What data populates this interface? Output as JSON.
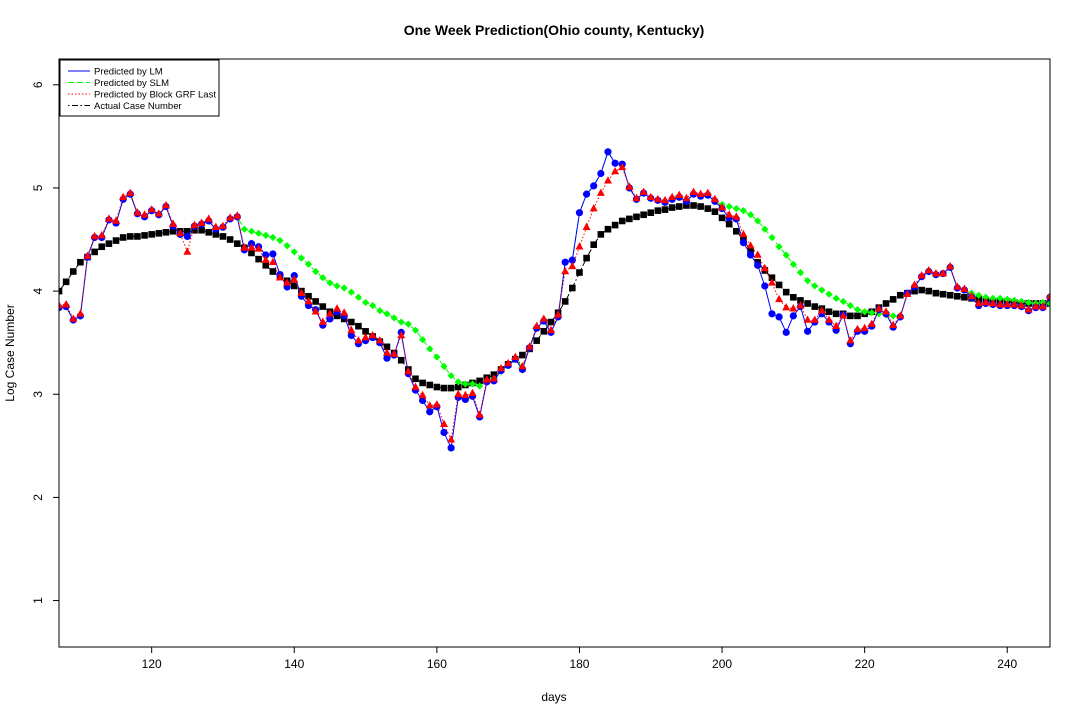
{
  "chart_data": {
    "type": "line",
    "title": "One Week Prediction(Ohio county, Kentucky)",
    "xlabel": "days",
    "ylabel": "Log Case Number",
    "xlim": [
      107,
      246
    ],
    "ylim": [
      0.55,
      6.25
    ],
    "xticks": [
      120,
      140,
      160,
      180,
      200,
      220,
      240
    ],
    "yticks": [
      1,
      2,
      3,
      4,
      5,
      6
    ],
    "grid": false,
    "legend_position": "top-left",
    "legend": [
      {
        "label": "Predicted by LM",
        "color": "#0000ff",
        "dash": "solid"
      },
      {
        "label": "Predicted by SLM",
        "color": "#00ff00",
        "dash": "dashed"
      },
      {
        "label": "Predicted by Block GRF Last",
        "color": "#ff0000",
        "dash": "dotted"
      },
      {
        "label": "Actual Case Number",
        "color": "#000000",
        "dash": "dotdash"
      }
    ],
    "series": [
      {
        "name": "Actual Case Number",
        "color": "#000000",
        "marker": "square",
        "x": [
          107,
          108,
          109,
          110,
          111,
          112,
          113,
          114,
          115,
          116,
          117,
          118,
          119,
          120,
          121,
          122,
          123,
          124,
          125,
          126,
          127,
          128,
          129,
          130,
          131,
          132,
          133,
          134,
          135,
          136,
          137,
          138,
          139,
          140,
          141,
          142,
          143,
          144,
          145,
          146,
          147,
          148,
          149,
          150,
          151,
          152,
          153,
          154,
          155,
          156,
          157,
          158,
          159,
          160,
          161,
          162,
          163,
          164,
          165,
          166,
          167,
          168,
          169,
          170,
          171,
          172,
          173,
          174,
          175,
          176,
          177,
          178,
          179,
          180,
          181,
          182,
          183,
          184,
          185,
          186,
          187,
          188,
          189,
          190,
          191,
          192,
          193,
          194,
          195,
          196,
          197,
          198,
          199,
          200,
          201,
          202,
          203,
          204,
          205,
          206,
          207,
          208,
          209,
          210,
          211,
          212,
          213,
          214,
          215,
          216,
          217,
          218,
          219,
          220,
          221,
          222,
          223,
          224,
          225,
          226,
          227,
          228,
          229,
          230,
          231,
          232,
          233,
          234,
          235,
          236,
          237,
          238,
          239,
          240,
          241,
          242,
          243,
          244,
          245,
          246
        ],
        "values": [
          4.0,
          4.09,
          4.19,
          4.28,
          4.33,
          4.38,
          4.43,
          4.46,
          4.49,
          4.52,
          4.53,
          4.53,
          4.54,
          4.55,
          4.56,
          4.57,
          4.58,
          4.58,
          4.58,
          4.59,
          4.59,
          4.57,
          4.55,
          4.53,
          4.5,
          4.46,
          4.42,
          4.37,
          4.31,
          4.25,
          4.19,
          4.14,
          4.1,
          4.05,
          4.0,
          3.95,
          3.9,
          3.85,
          3.8,
          3.76,
          3.73,
          3.7,
          3.66,
          3.61,
          3.56,
          3.51,
          3.46,
          3.4,
          3.33,
          3.24,
          3.15,
          3.11,
          3.09,
          3.07,
          3.06,
          3.06,
          3.07,
          3.09,
          3.11,
          3.13,
          3.16,
          3.19,
          3.24,
          3.29,
          3.34,
          3.38,
          3.44,
          3.52,
          3.61,
          3.7,
          3.79,
          3.9,
          4.03,
          4.18,
          4.32,
          4.45,
          4.55,
          4.6,
          4.64,
          4.68,
          4.7,
          4.72,
          4.74,
          4.76,
          4.78,
          4.79,
          4.81,
          4.82,
          4.83,
          4.83,
          4.82,
          4.8,
          4.77,
          4.71,
          4.65,
          4.58,
          4.5,
          4.39,
          4.28,
          4.2,
          4.13,
          4.06,
          3.99,
          3.94,
          3.91,
          3.88,
          3.85,
          3.83,
          3.8,
          3.78,
          3.78,
          3.76,
          3.76,
          3.78,
          3.8,
          3.84,
          3.88,
          3.92,
          3.96,
          3.98,
          4.0,
          4.01,
          4.0,
          3.98,
          3.97,
          3.96,
          3.95,
          3.94,
          3.93,
          3.92,
          3.91,
          3.9,
          3.9,
          3.9,
          3.89,
          3.88,
          3.88,
          3.88,
          3.88,
          3.88
        ]
      },
      {
        "name": "Predicted by SLM",
        "color": "#00ff00",
        "marker": "diamond",
        "x": [
          107,
          108,
          109,
          110,
          111,
          112,
          113,
          114,
          115,
          116,
          117,
          118,
          119,
          120,
          121,
          122,
          123,
          124,
          125,
          126,
          127,
          128,
          129,
          130,
          131,
          132,
          133,
          134,
          135,
          136,
          137,
          138,
          139,
          140,
          141,
          142,
          143,
          144,
          145,
          146,
          147,
          148,
          149,
          150,
          151,
          152,
          153,
          154,
          155,
          156,
          157,
          158,
          159,
          160,
          161,
          162,
          163,
          164,
          165,
          166,
          167,
          168,
          169,
          170,
          171,
          172,
          173,
          174,
          175,
          176,
          177,
          178,
          179,
          180,
          181,
          182,
          183,
          184,
          185,
          186,
          187,
          188,
          189,
          190,
          191,
          192,
          193,
          194,
          195,
          196,
          197,
          198,
          199,
          200,
          201,
          202,
          203,
          204,
          205,
          206,
          207,
          208,
          209,
          210,
          211,
          212,
          213,
          214,
          215,
          216,
          217,
          218,
          219,
          220,
          221,
          222,
          223,
          224,
          225,
          226,
          227,
          228,
          229,
          230,
          231,
          232,
          233,
          234,
          235,
          236,
          237,
          238,
          239,
          240,
          241,
          242,
          243,
          244,
          245,
          246
        ],
        "values": [
          3.84,
          3.85,
          3.72,
          3.76,
          4.33,
          4.52,
          4.52,
          4.69,
          4.66,
          4.89,
          4.94,
          4.75,
          4.72,
          4.78,
          4.74,
          4.82,
          4.63,
          4.55,
          4.53,
          4.63,
          4.65,
          4.68,
          4.6,
          4.62,
          4.7,
          4.72,
          4.6,
          4.58,
          4.56,
          4.54,
          4.52,
          4.49,
          4.44,
          4.38,
          4.32,
          4.26,
          4.19,
          4.13,
          4.08,
          4.05,
          4.03,
          3.99,
          3.94,
          3.89,
          3.86,
          3.81,
          3.78,
          3.74,
          3.7,
          3.68,
          3.62,
          3.53,
          3.44,
          3.36,
          3.27,
          3.18,
          3.12,
          3.1,
          3.1,
          3.08,
          3.12,
          3.15,
          3.22,
          3.28,
          3.35,
          3.26,
          3.45,
          3.64,
          3.71,
          3.6,
          3.75,
          4.28,
          4.3,
          4.76,
          4.94,
          5.02,
          5.14,
          5.35,
          5.24,
          5.23,
          5.0,
          4.89,
          4.95,
          4.9,
          4.88,
          4.86,
          4.89,
          4.91,
          4.87,
          4.94,
          4.92,
          4.93,
          4.87,
          4.84,
          4.82,
          4.8,
          4.78,
          4.74,
          4.68,
          4.6,
          4.52,
          4.43,
          4.35,
          4.26,
          4.18,
          4.1,
          4.05,
          4.01,
          3.97,
          3.93,
          3.9,
          3.86,
          3.82,
          3.8,
          3.79,
          3.78,
          3.77,
          3.76,
          3.75,
          3.98,
          4.04,
          4.14,
          4.19,
          4.16,
          4.17,
          4.23,
          4.03,
          4.01,
          3.98,
          3.96,
          3.94,
          3.93,
          3.93,
          3.92,
          3.91,
          3.9,
          3.89,
          3.88,
          3.89,
          3.88
        ]
      },
      {
        "name": "Predicted by LM",
        "color": "#0000ff",
        "marker": "circle",
        "x": [
          107,
          108,
          109,
          110,
          111,
          112,
          113,
          114,
          115,
          116,
          117,
          118,
          119,
          120,
          121,
          122,
          123,
          124,
          125,
          126,
          127,
          128,
          129,
          130,
          131,
          132,
          133,
          134,
          135,
          136,
          137,
          138,
          139,
          140,
          141,
          142,
          143,
          144,
          145,
          146,
          147,
          148,
          149,
          150,
          151,
          152,
          153,
          154,
          155,
          156,
          157,
          158,
          159,
          160,
          161,
          162,
          163,
          164,
          165,
          166,
          167,
          168,
          169,
          170,
          171,
          172,
          173,
          174,
          175,
          176,
          177,
          178,
          179,
          180,
          181,
          182,
          183,
          184,
          185,
          186,
          187,
          188,
          189,
          190,
          191,
          192,
          193,
          194,
          195,
          196,
          197,
          198,
          199,
          200,
          201,
          202,
          203,
          204,
          205,
          206,
          207,
          208,
          209,
          210,
          211,
          212,
          213,
          214,
          215,
          216,
          217,
          218,
          219,
          220,
          221,
          222,
          223,
          224,
          225,
          226,
          227,
          228,
          229,
          230,
          231,
          232,
          233,
          234,
          235,
          236,
          237,
          238,
          239,
          240,
          241,
          242,
          243,
          244,
          245,
          246
        ],
        "values": [
          3.84,
          3.85,
          3.72,
          3.76,
          4.33,
          4.52,
          4.52,
          4.69,
          4.66,
          4.89,
          4.94,
          4.75,
          4.72,
          4.78,
          4.74,
          4.82,
          4.63,
          4.55,
          4.53,
          4.63,
          4.65,
          4.68,
          4.6,
          4.62,
          4.7,
          4.72,
          4.4,
          4.46,
          4.43,
          4.35,
          4.36,
          4.16,
          4.04,
          4.15,
          3.95,
          3.86,
          3.82,
          3.67,
          3.73,
          3.8,
          3.76,
          3.57,
          3.49,
          3.52,
          3.55,
          3.5,
          3.35,
          3.38,
          3.6,
          3.2,
          3.04,
          2.94,
          2.83,
          2.88,
          2.63,
          2.48,
          2.97,
          2.95,
          2.98,
          2.78,
          3.12,
          3.13,
          3.23,
          3.28,
          3.34,
          3.24,
          3.45,
          3.64,
          3.71,
          3.6,
          3.75,
          4.28,
          4.3,
          4.76,
          4.94,
          5.02,
          5.14,
          5.35,
          5.24,
          5.23,
          5.0,
          4.89,
          4.95,
          4.9,
          4.88,
          4.86,
          4.89,
          4.91,
          4.87,
          4.94,
          4.92,
          4.93,
          4.87,
          4.8,
          4.71,
          4.7,
          4.47,
          4.35,
          4.25,
          4.05,
          3.78,
          3.75,
          3.6,
          3.76,
          3.85,
          3.61,
          3.7,
          3.78,
          3.7,
          3.62,
          3.77,
          3.49,
          3.61,
          3.61,
          3.66,
          3.82,
          3.78,
          3.65,
          3.75,
          3.98,
          4.04,
          4.14,
          4.19,
          4.16,
          4.17,
          4.23,
          4.03,
          4.01,
          3.94,
          3.86,
          3.88,
          3.87,
          3.86,
          3.86,
          3.86,
          3.85,
          3.81,
          3.84,
          3.84,
          3.94
        ]
      },
      {
        "name": "Predicted by Block GRF Last",
        "color": "#ff0000",
        "marker": "triangle",
        "x": [
          107,
          108,
          109,
          110,
          111,
          112,
          113,
          114,
          115,
          116,
          117,
          118,
          119,
          120,
          121,
          122,
          123,
          124,
          125,
          126,
          127,
          128,
          129,
          130,
          131,
          132,
          133,
          134,
          135,
          136,
          137,
          138,
          139,
          140,
          141,
          142,
          143,
          144,
          145,
          146,
          147,
          148,
          149,
          150,
          151,
          152,
          153,
          154,
          155,
          156,
          157,
          158,
          159,
          160,
          161,
          162,
          163,
          164,
          165,
          166,
          167,
          168,
          169,
          170,
          171,
          172,
          173,
          174,
          175,
          176,
          177,
          178,
          179,
          180,
          181,
          182,
          183,
          184,
          185,
          186,
          187,
          188,
          189,
          190,
          191,
          192,
          193,
          194,
          195,
          196,
          197,
          198,
          199,
          200,
          201,
          202,
          203,
          204,
          205,
          206,
          207,
          208,
          209,
          210,
          211,
          212,
          213,
          214,
          215,
          216,
          217,
          218,
          219,
          220,
          221,
          222,
          223,
          224,
          225,
          226,
          227,
          228,
          229,
          230,
          231,
          232,
          233,
          234,
          235,
          236,
          237,
          238,
          239,
          240,
          241,
          242,
          243,
          244,
          245,
          246
        ],
        "values": [
          3.86,
          3.87,
          3.73,
          3.78,
          4.34,
          4.53,
          4.54,
          4.7,
          4.68,
          4.91,
          4.95,
          4.76,
          4.74,
          4.79,
          4.75,
          4.83,
          4.65,
          4.56,
          4.38,
          4.64,
          4.66,
          4.7,
          4.62,
          4.63,
          4.71,
          4.73,
          4.42,
          4.42,
          4.41,
          4.3,
          4.28,
          4.13,
          4.08,
          4.11,
          3.98,
          3.9,
          3.8,
          3.7,
          3.78,
          3.83,
          3.79,
          3.62,
          3.52,
          3.55,
          3.57,
          3.52,
          3.4,
          3.39,
          3.57,
          3.22,
          3.07,
          2.99,
          2.89,
          2.9,
          2.71,
          2.56,
          3.0,
          2.99,
          3.01,
          2.8,
          3.14,
          3.15,
          3.25,
          3.3,
          3.36,
          3.27,
          3.46,
          3.66,
          3.73,
          3.62,
          3.77,
          4.19,
          4.24,
          4.43,
          4.62,
          4.8,
          4.95,
          5.07,
          5.16,
          5.2,
          5.01,
          4.9,
          4.96,
          4.91,
          4.89,
          4.88,
          4.91,
          4.93,
          4.9,
          4.96,
          4.94,
          4.95,
          4.89,
          4.81,
          4.74,
          4.72,
          4.55,
          4.44,
          4.35,
          4.22,
          4.08,
          3.92,
          3.84,
          3.83,
          3.86,
          3.72,
          3.72,
          3.81,
          3.72,
          3.66,
          3.76,
          3.52,
          3.63,
          3.64,
          3.68,
          3.83,
          3.8,
          3.67,
          3.76,
          3.97,
          4.06,
          4.15,
          4.2,
          4.17,
          4.17,
          4.24,
          4.04,
          4.02,
          3.95,
          3.88,
          3.89,
          3.88,
          3.87,
          3.87,
          3.87,
          3.86,
          3.82,
          3.85,
          3.85,
          3.95
        ]
      }
    ]
  }
}
